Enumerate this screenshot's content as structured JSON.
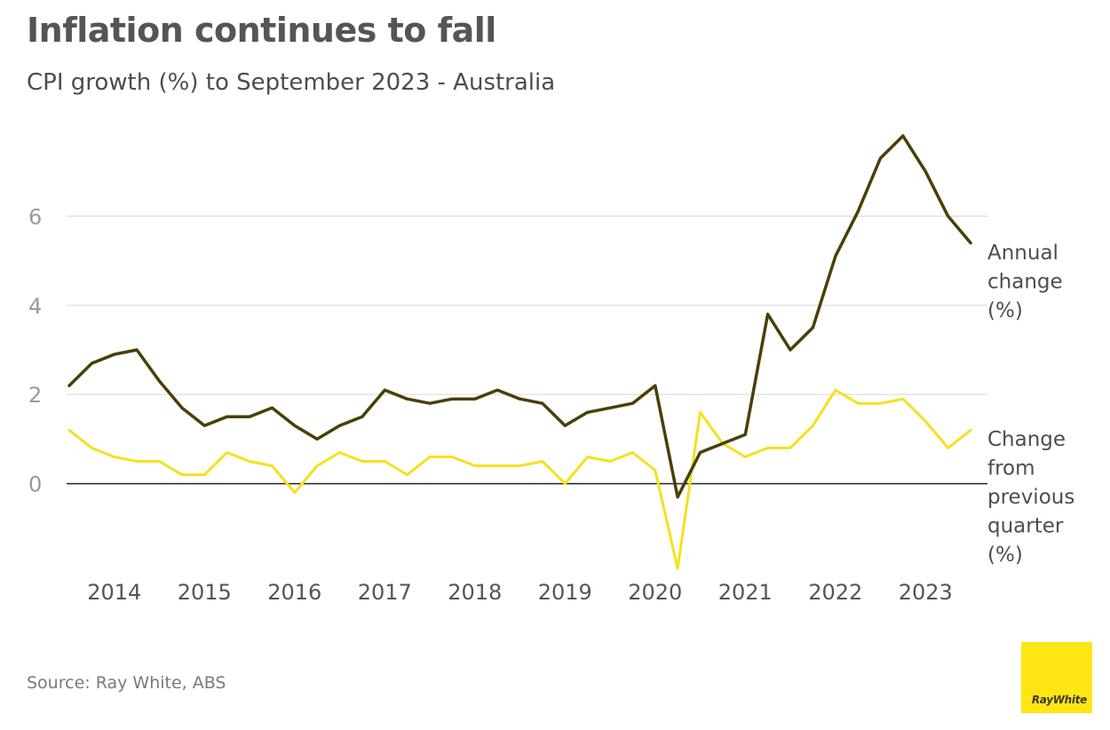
{
  "title": "Inflation continues to fall",
  "subtitle": "CPI growth (%) to September 2023 - Australia",
  "source": "Source: Ray White, ABS",
  "logo_text": "RayWhite",
  "colors": {
    "annual": "#4a3f05",
    "quarterly": "#f5e11e",
    "grid": "#dcdcdc",
    "zero": "#222222",
    "logo_bg": "#ffe512"
  },
  "chart_data": {
    "type": "line",
    "x_start": "2013 Q3",
    "x_end": "2023 Q3",
    "x": [
      "2013 Q3",
      "2013 Q4",
      "2014 Q1",
      "2014 Q2",
      "2014 Q3",
      "2014 Q4",
      "2015 Q1",
      "2015 Q2",
      "2015 Q3",
      "2015 Q4",
      "2016 Q1",
      "2016 Q2",
      "2016 Q3",
      "2016 Q4",
      "2017 Q1",
      "2017 Q2",
      "2017 Q3",
      "2017 Q4",
      "2018 Q1",
      "2018 Q2",
      "2018 Q3",
      "2018 Q4",
      "2019 Q1",
      "2019 Q2",
      "2019 Q3",
      "2019 Q4",
      "2020 Q1",
      "2020 Q2",
      "2020 Q3",
      "2020 Q4",
      "2021 Q1",
      "2021 Q2",
      "2021 Q3",
      "2021 Q4",
      "2022 Q1",
      "2022 Q2",
      "2022 Q3",
      "2022 Q4",
      "2023 Q1",
      "2023 Q2",
      "2023 Q3"
    ],
    "xtick_labels": [
      "2014",
      "2015",
      "2016",
      "2017",
      "2018",
      "2019",
      "2020",
      "2021",
      "2022",
      "2023"
    ],
    "ytick_labels": [
      "0",
      "2",
      "4",
      "6"
    ],
    "yticks": [
      0,
      2,
      4,
      6
    ],
    "ylim": [
      -2,
      8
    ],
    "grid": true,
    "series": [
      {
        "name": "Annual change (%)",
        "name_lines": [
          "Annual",
          "change",
          "(%)"
        ],
        "color": "#4a3f05",
        "values": [
          2.2,
          2.7,
          2.9,
          3.0,
          2.3,
          1.7,
          1.3,
          1.5,
          1.5,
          1.7,
          1.3,
          1.0,
          1.3,
          1.5,
          2.1,
          1.9,
          1.8,
          1.9,
          1.9,
          2.1,
          1.9,
          1.8,
          1.3,
          1.6,
          1.7,
          1.8,
          2.2,
          -0.3,
          0.7,
          0.9,
          1.1,
          3.8,
          3.0,
          3.5,
          5.1,
          6.1,
          7.3,
          7.8,
          7.0,
          6.0,
          5.4
        ]
      },
      {
        "name": "Change from previous quarter (%)",
        "name_lines": [
          "Change",
          "from",
          "previous",
          "quarter",
          "(%)"
        ],
        "color": "#f5e11e",
        "values": [
          1.2,
          0.8,
          0.6,
          0.5,
          0.5,
          0.2,
          0.2,
          0.7,
          0.5,
          0.4,
          -0.2,
          0.4,
          0.7,
          0.5,
          0.5,
          0.2,
          0.6,
          0.6,
          0.4,
          0.4,
          0.4,
          0.5,
          0.0,
          0.6,
          0.5,
          0.7,
          0.3,
          -1.9,
          1.6,
          0.9,
          0.6,
          0.8,
          0.8,
          1.3,
          2.1,
          1.8,
          1.8,
          1.9,
          1.4,
          0.8,
          1.2
        ]
      }
    ]
  }
}
